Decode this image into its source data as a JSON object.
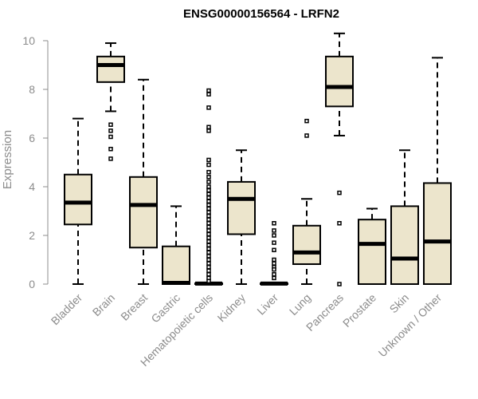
{
  "chart_data": {
    "type": "box",
    "title": "ENSG00000156564 - LRFN2",
    "xlabel": "",
    "ylabel": "Expression",
    "ylim": [
      0,
      10.4
    ],
    "yticks": [
      "0",
      "2",
      "4",
      "6",
      "8",
      "10"
    ],
    "grid": false,
    "colors": {
      "box_fill": "#ece5cc",
      "box_stroke": "#000000",
      "axis": "#8c8c8c",
      "title": "#000000"
    },
    "categories": [
      "Bladder",
      "Brain",
      "Breast",
      "Gastric",
      "Hematopoietic cells",
      "Kidney",
      "Liver",
      "Lung",
      "Pancreas",
      "Prostate",
      "Skin",
      "Unknown / Other"
    ],
    "boxes": [
      {
        "category": "Bladder",
        "whisker_low": 0,
        "q1": 2.45,
        "median": 3.35,
        "q3": 4.5,
        "whisker_high": 6.8,
        "outliers": []
      },
      {
        "category": "Brain",
        "whisker_low": 7.1,
        "q1": 8.3,
        "median": 9.0,
        "q3": 9.35,
        "whisker_high": 9.9,
        "outliers": [
          6.55,
          6.3,
          6.05,
          5.55,
          5.15
        ]
      },
      {
        "category": "Breast",
        "whisker_low": 0,
        "q1": 1.5,
        "median": 3.25,
        "q3": 4.4,
        "whisker_high": 8.4,
        "outliers": []
      },
      {
        "category": "Gastric",
        "whisker_low": 0,
        "q1": 0,
        "median": 0.05,
        "q3": 1.55,
        "whisker_high": 3.2,
        "outliers": []
      },
      {
        "category": "Hematopoietic cells",
        "whisker_low": 0,
        "q1": 0,
        "median": 0.02,
        "q3": 0.03,
        "whisker_high": 0.05,
        "outliers": [
          7.95,
          7.8,
          7.25,
          6.45,
          6.3,
          5.1,
          4.9,
          4.6,
          4.4,
          4.2,
          4.0,
          3.85,
          3.7,
          3.55,
          3.4,
          3.25,
          3.1,
          2.95,
          2.8,
          2.65,
          2.5,
          2.35,
          2.2,
          2.05,
          1.9,
          1.75,
          1.6,
          1.45,
          1.3,
          1.15,
          1.0,
          0.85,
          0.7,
          0.55,
          0.4,
          0.25,
          0.12
        ]
      },
      {
        "category": "Kidney",
        "whisker_low": 0,
        "q1": 2.05,
        "median": 3.5,
        "q3": 4.2,
        "whisker_high": 5.5,
        "outliers": []
      },
      {
        "category": "Liver",
        "whisker_low": 0,
        "q1": 0,
        "median": 0.02,
        "q3": 0.03,
        "whisker_high": 0.05,
        "outliers": [
          2.5,
          2.2,
          2.0,
          1.7,
          1.4,
          1.0,
          0.85,
          0.7,
          0.6,
          0.4,
          0.25
        ]
      },
      {
        "category": "Lung",
        "whisker_low": 0,
        "q1": 0.82,
        "median": 1.3,
        "q3": 2.4,
        "whisker_high": 3.5,
        "outliers": [
          6.7,
          6.1
        ]
      },
      {
        "category": "Pancreas",
        "whisker_low": 6.1,
        "q1": 7.3,
        "median": 8.1,
        "q3": 9.35,
        "whisker_high": 10.3,
        "outliers": [
          3.75,
          2.5,
          0
        ]
      },
      {
        "category": "Prostate",
        "whisker_low": 0,
        "q1": 0,
        "median": 1.65,
        "q3": 2.65,
        "whisker_high": 3.1,
        "outliers": []
      },
      {
        "category": "Skin",
        "whisker_low": 0,
        "q1": 0,
        "median": 1.05,
        "q3": 3.2,
        "whisker_high": 5.5,
        "outliers": []
      },
      {
        "category": "Unknown / Other",
        "whisker_low": 0,
        "q1": 0,
        "median": 1.75,
        "q3": 4.15,
        "whisker_high": 9.3,
        "outliers": []
      }
    ]
  }
}
